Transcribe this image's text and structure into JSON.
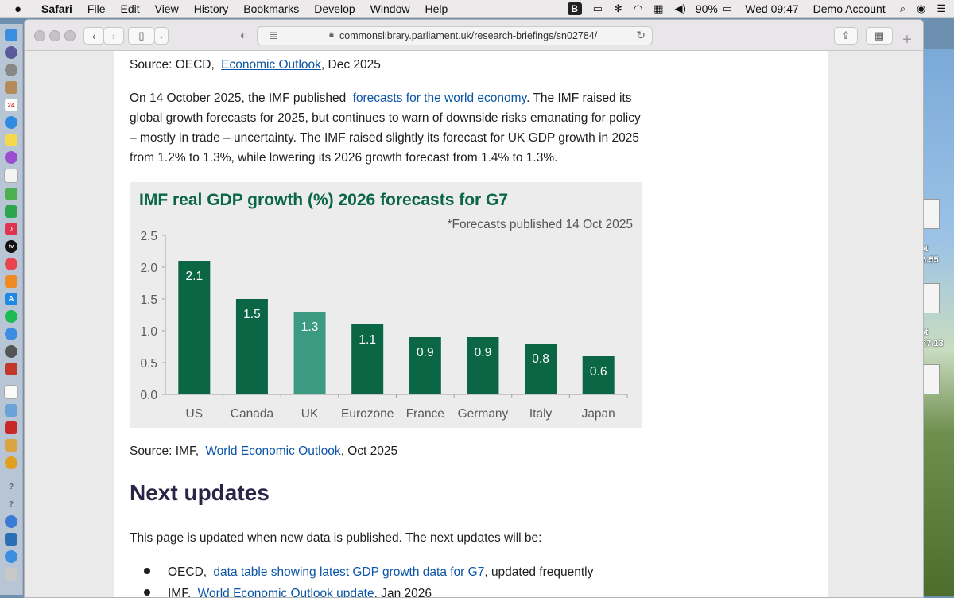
{
  "menubar": {
    "app": "Safari",
    "menus": [
      "File",
      "Edit",
      "View",
      "History",
      "Bookmarks",
      "Develop",
      "Window",
      "Help"
    ],
    "battery": "90%",
    "clock": "Wed 09:47",
    "user": "Demo Account"
  },
  "desktop": {
    "label1": "hot",
    "label1b": ".46.55",
    "label2": "hot",
    "label2b": "9.37.13",
    "label0": "d"
  },
  "browser": {
    "url": "commonslibrary.parliament.uk/research-briefings/sn02784/"
  },
  "article": {
    "source1_prefix": "Source: OECD,",
    "source1_link": "Economic Outlook",
    "source1_suffix": ", Dec 2025",
    "para_line1_pre": "On 14 October 2025, the IMF published",
    "para_link": "forecasts for the world economy",
    "para_line1_post": ". The IMF raised its",
    "para_line2": "global growth forecasts for 2025, but continues to warn of downside risks emanating for policy",
    "para_line3": "– mostly in trade – uncertainty. The IMF raised slightly its forecast for UK GDP growth in 2025",
    "para_line4": "from 1.2% to 1.3%, while lowering its 2026 growth forecast from 1.4% to 1.3%.",
    "source2_prefix": "Source: IMF,",
    "source2_link": "World Economic Outlook",
    "source2_suffix": ", Oct 2025",
    "heading": "Next updates",
    "updates_intro": "This page is updated when new data is published. The next updates will be:",
    "bullet1_prefix": "OECD,",
    "bullet1_link": "data table showing latest GDP growth data for G7",
    "bullet1_suffix": ", updated frequently",
    "bullet2_prefix": "IMF,",
    "bullet2_link": "World Economic Outlook update",
    "bullet2_suffix": ", Jan 2026"
  },
  "chart_data": {
    "type": "bar",
    "title": "IMF real GDP growth (%) 2026 forecasts for G7",
    "subtitle": "*Forecasts  published 14 Oct 2025",
    "categories": [
      "US",
      "Canada",
      "UK",
      "Eurozone",
      "France",
      "Germany",
      "Italy",
      "Japan"
    ],
    "values": [
      2.1,
      1.5,
      1.3,
      1.1,
      0.9,
      0.9,
      0.8,
      0.6
    ],
    "value_labels": [
      "2.1",
      "1.5",
      "1.3",
      "1.1",
      "0.9",
      "0.9",
      "0.8",
      "0.6"
    ],
    "y_ticks": [
      "0.0",
      "0.5",
      "1.0",
      "1.5",
      "2.0",
      "2.5"
    ],
    "y_tick_values": [
      0,
      0.5,
      1.0,
      1.5,
      2.0,
      2.5
    ],
    "ylim": [
      0,
      2.5
    ],
    "xlabel": "",
    "ylabel": "",
    "grid": false,
    "bar_color": "#0a6645",
    "highlight_color": "#3c9a82",
    "highlight_category": "UK",
    "title_color": "#0a6645"
  },
  "colors": {
    "link": "#0b55a6",
    "heading": "#2a2446"
  }
}
